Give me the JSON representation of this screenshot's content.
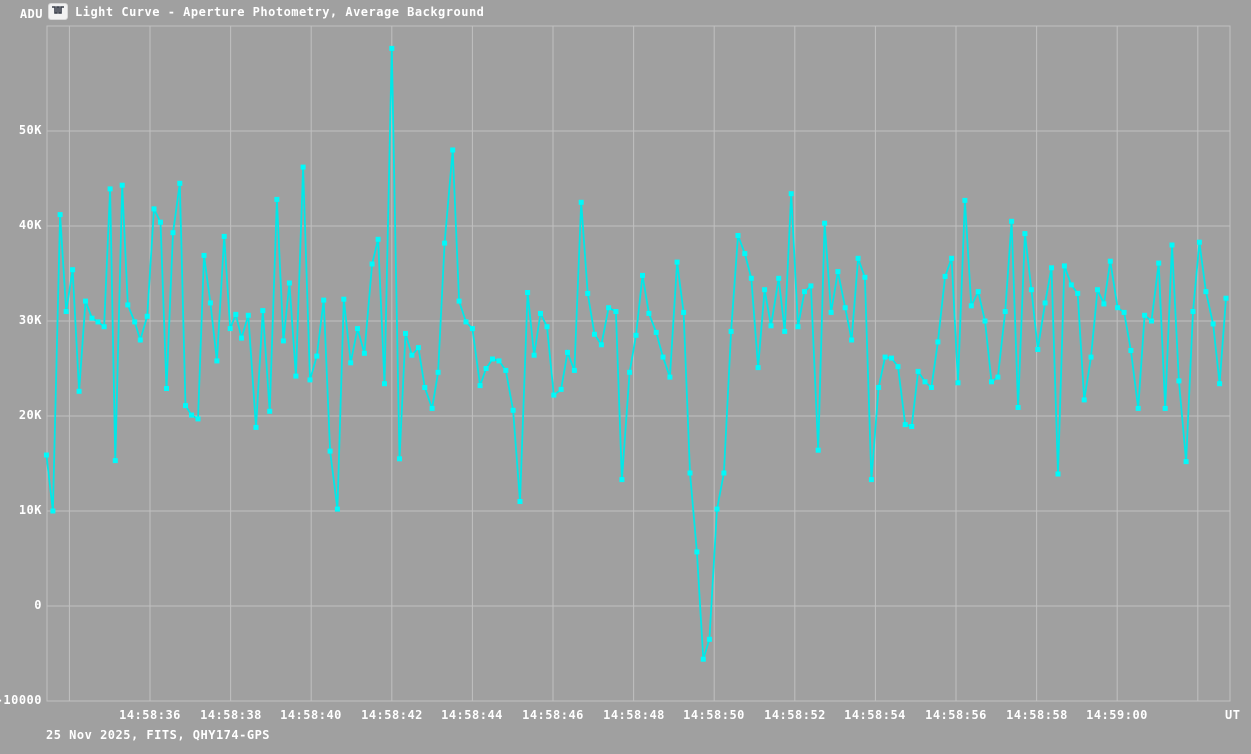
{
  "header": {
    "y_axis_unit": "ADU",
    "title": "Light Curve - Aperture Photometry, Average Background"
  },
  "footer": {
    "info": "25 Nov 2025, FITS, QHY174-GPS",
    "x_axis_unit": "UT"
  },
  "colors": {
    "background": "#a0a0a0",
    "grid": "#c0c0c0",
    "curve": "#00e8e8",
    "marker": "#00fafa",
    "text": "#ffffff",
    "icon_glyph": "#3a3f4a"
  },
  "chart_data": {
    "type": "line",
    "title": "Light Curve - Aperture Photometry, Average Background",
    "ylabel": "ADU",
    "xlabel": "UT",
    "legend": "none",
    "grid": "on",
    "ylim": [
      -10000,
      61000
    ],
    "xlim_seconds_after_145800": [
      33.4,
      62.8
    ],
    "y_ticks": [
      "50K",
      "40K",
      "30K",
      "20K",
      "10K",
      "0",
      "-10000"
    ],
    "y_tick_values": [
      50000,
      40000,
      30000,
      20000,
      10000,
      0,
      -10000
    ],
    "x_ticks": [
      "14:58:36",
      "14:58:38",
      "14:58:40",
      "14:58:42",
      "14:58:44",
      "14:58:46",
      "14:58:48",
      "14:58:50",
      "14:58:52",
      "14:58:54",
      "14:58:56",
      "14:58:58",
      "14:59:00"
    ],
    "x_tick_seconds": [
      36,
      38,
      40,
      42,
      44,
      46,
      48,
      50,
      52,
      54,
      56,
      58,
      60
    ],
    "x_grid_seconds": [
      34,
      36,
      38,
      40,
      42,
      44,
      46,
      48,
      50,
      52,
      54,
      56,
      58,
      60,
      62
    ],
    "points_format": "[seconds after 14:58:00 UT, ADU]",
    "points": [
      [
        33.43,
        15900
      ],
      [
        33.59,
        10000
      ],
      [
        33.77,
        41200
      ],
      [
        33.92,
        31000
      ],
      [
        34.08,
        35400
      ],
      [
        34.24,
        22600
      ],
      [
        34.4,
        32100
      ],
      [
        34.56,
        30300
      ],
      [
        34.71,
        29900
      ],
      [
        34.86,
        29400
      ],
      [
        35.01,
        43900
      ],
      [
        35.14,
        15300
      ],
      [
        35.31,
        44300
      ],
      [
        35.45,
        31700
      ],
      [
        35.62,
        29900
      ],
      [
        35.76,
        28000
      ],
      [
        35.93,
        30500
      ],
      [
        36.1,
        41800
      ],
      [
        36.26,
        40400
      ],
      [
        36.41,
        22900
      ],
      [
        36.57,
        39300
      ],
      [
        36.74,
        44500
      ],
      [
        36.88,
        21100
      ],
      [
        37.03,
        20100
      ],
      [
        37.19,
        19700
      ],
      [
        37.34,
        36900
      ],
      [
        37.5,
        31900
      ],
      [
        37.66,
        25800
      ],
      [
        37.84,
        38900
      ],
      [
        37.99,
        29200
      ],
      [
        38.13,
        30700
      ],
      [
        38.27,
        28200
      ],
      [
        38.44,
        30600
      ],
      [
        38.63,
        18800
      ],
      [
        38.8,
        31100
      ],
      [
        38.97,
        20500
      ],
      [
        39.15,
        42800
      ],
      [
        39.31,
        27900
      ],
      [
        39.46,
        34000
      ],
      [
        39.62,
        24200
      ],
      [
        39.8,
        46200
      ],
      [
        39.97,
        23800
      ],
      [
        40.14,
        26300
      ],
      [
        40.31,
        32200
      ],
      [
        40.47,
        16300
      ],
      [
        40.65,
        10200
      ],
      [
        40.81,
        32300
      ],
      [
        40.98,
        25600
      ],
      [
        41.15,
        29200
      ],
      [
        41.32,
        26600
      ],
      [
        41.51,
        36000
      ],
      [
        41.66,
        38600
      ],
      [
        41.82,
        23400
      ],
      [
        42.0,
        58700
      ],
      [
        42.19,
        15500
      ],
      [
        42.34,
        28700
      ],
      [
        42.5,
        26400
      ],
      [
        42.66,
        27200
      ],
      [
        42.82,
        23000
      ],
      [
        43.0,
        20800
      ],
      [
        43.15,
        24600
      ],
      [
        43.31,
        38200
      ],
      [
        43.51,
        48000
      ],
      [
        43.67,
        32100
      ],
      [
        43.84,
        29900
      ],
      [
        44.0,
        29200
      ],
      [
        44.19,
        23200
      ],
      [
        44.34,
        25000
      ],
      [
        44.5,
        26000
      ],
      [
        44.66,
        25800
      ],
      [
        44.83,
        24800
      ],
      [
        45.01,
        20600
      ],
      [
        45.18,
        11000
      ],
      [
        45.37,
        33000
      ],
      [
        45.53,
        26400
      ],
      [
        45.69,
        30800
      ],
      [
        45.85,
        29400
      ],
      [
        46.02,
        22200
      ],
      [
        46.2,
        22800
      ],
      [
        46.36,
        26700
      ],
      [
        46.53,
        24800
      ],
      [
        46.7,
        42500
      ],
      [
        46.86,
        32900
      ],
      [
        47.03,
        28600
      ],
      [
        47.2,
        27500
      ],
      [
        47.38,
        31400
      ],
      [
        47.56,
        31000
      ],
      [
        47.71,
        13300
      ],
      [
        47.9,
        24600
      ],
      [
        48.06,
        28500
      ],
      [
        48.22,
        34800
      ],
      [
        48.38,
        30800
      ],
      [
        48.56,
        28800
      ],
      [
        48.73,
        26200
      ],
      [
        48.9,
        24100
      ],
      [
        49.08,
        36200
      ],
      [
        49.24,
        30900
      ],
      [
        49.4,
        14000
      ],
      [
        49.57,
        5700
      ],
      [
        49.73,
        -5600
      ],
      [
        49.88,
        -3500
      ],
      [
        50.07,
        10200
      ],
      [
        50.24,
        14000
      ],
      [
        50.42,
        28900
      ],
      [
        50.59,
        39000
      ],
      [
        50.76,
        37100
      ],
      [
        50.92,
        34500
      ],
      [
        51.09,
        25100
      ],
      [
        51.25,
        33300
      ],
      [
        51.41,
        29500
      ],
      [
        51.6,
        34500
      ],
      [
        51.75,
        28900
      ],
      [
        51.91,
        43400
      ],
      [
        52.08,
        29400
      ],
      [
        52.24,
        33100
      ],
      [
        52.4,
        33700
      ],
      [
        52.58,
        16400
      ],
      [
        52.74,
        40300
      ],
      [
        52.9,
        30900
      ],
      [
        53.07,
        35200
      ],
      [
        53.25,
        31400
      ],
      [
        53.41,
        28000
      ],
      [
        53.57,
        36600
      ],
      [
        53.74,
        34600
      ],
      [
        53.9,
        13300
      ],
      [
        54.08,
        23000
      ],
      [
        54.24,
        26200
      ],
      [
        54.4,
        26100
      ],
      [
        54.56,
        25200
      ],
      [
        54.74,
        19100
      ],
      [
        54.9,
        18900
      ],
      [
        55.06,
        24700
      ],
      [
        55.23,
        23600
      ],
      [
        55.39,
        23000
      ],
      [
        55.55,
        27800
      ],
      [
        55.73,
        34700
      ],
      [
        55.89,
        36600
      ],
      [
        56.05,
        23500
      ],
      [
        56.22,
        42700
      ],
      [
        56.38,
        31600
      ],
      [
        56.55,
        33100
      ],
      [
        56.72,
        30000
      ],
      [
        56.88,
        23600
      ],
      [
        57.04,
        24100
      ],
      [
        57.22,
        31000
      ],
      [
        57.38,
        40500
      ],
      [
        57.54,
        20900
      ],
      [
        57.71,
        39200
      ],
      [
        57.87,
        33300
      ],
      [
        58.03,
        27000
      ],
      [
        58.21,
        31900
      ],
      [
        58.37,
        35600
      ],
      [
        58.53,
        13900
      ],
      [
        58.69,
        35800
      ],
      [
        58.86,
        33800
      ],
      [
        59.02,
        32900
      ],
      [
        59.18,
        21700
      ],
      [
        59.35,
        26200
      ],
      [
        59.51,
        33300
      ],
      [
        59.67,
        31800
      ],
      [
        59.83,
        36300
      ],
      [
        60.01,
        31400
      ],
      [
        60.17,
        30900
      ],
      [
        60.34,
        26900
      ],
      [
        60.52,
        20800
      ],
      [
        60.68,
        30600
      ],
      [
        60.85,
        30000
      ],
      [
        61.03,
        36100
      ],
      [
        61.19,
        20800
      ],
      [
        61.36,
        38000
      ],
      [
        61.53,
        23700
      ],
      [
        61.71,
        15200
      ],
      [
        61.88,
        31000
      ],
      [
        62.04,
        38300
      ],
      [
        62.2,
        33100
      ],
      [
        62.38,
        29700
      ],
      [
        62.54,
        23400
      ],
      [
        62.7,
        32400
      ]
    ]
  }
}
